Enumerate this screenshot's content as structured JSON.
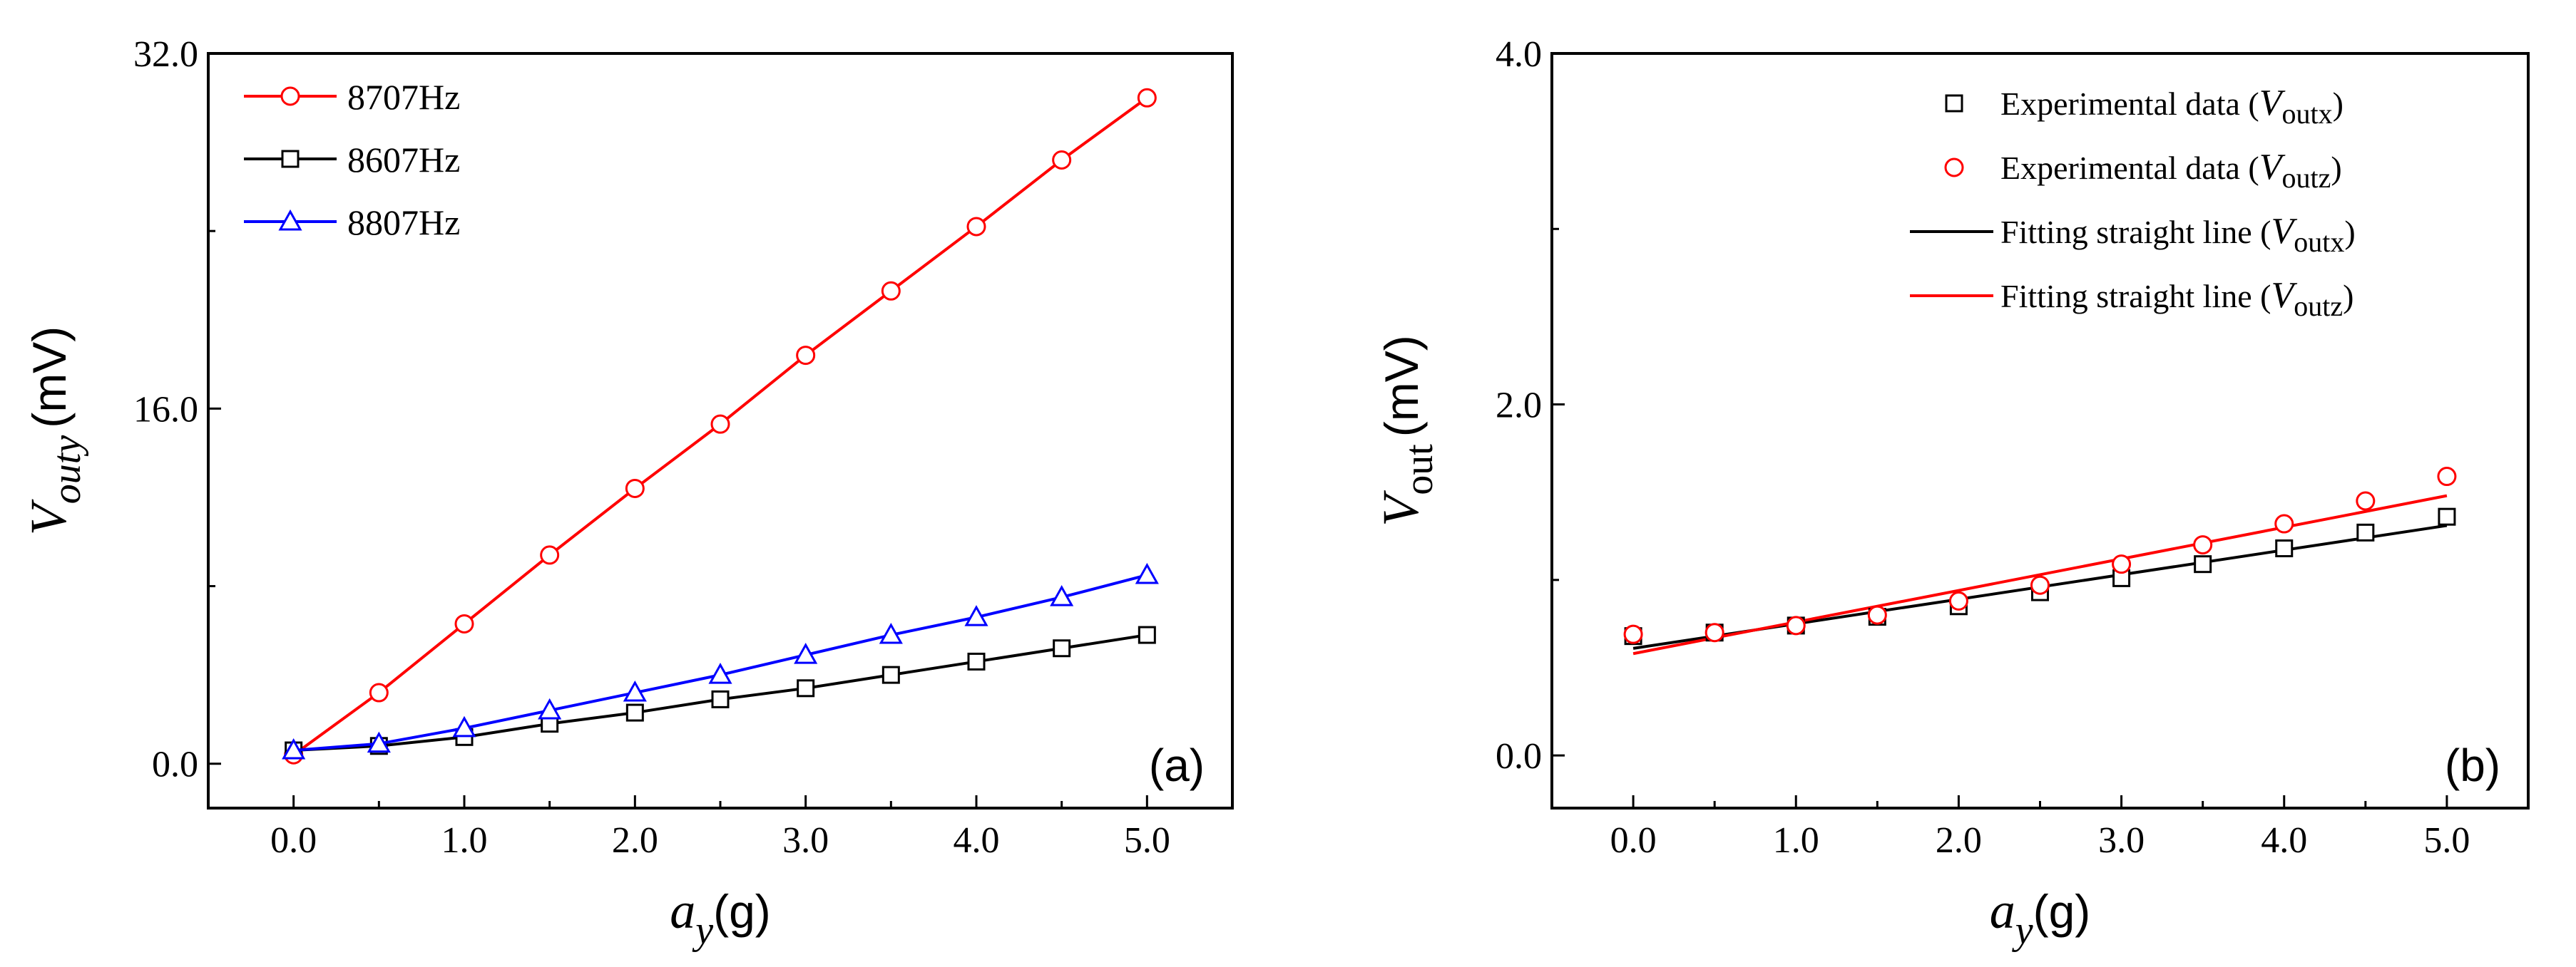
{
  "chart_data": [
    {
      "type": "line",
      "panel_label": "(a)",
      "xlabel": {
        "symbol": "a",
        "subscript": "y",
        "unit": "(g)"
      },
      "ylabel": {
        "symbol": "V",
        "subscript": "outy",
        "unit": "(mV)"
      },
      "xlim": [
        -0.5,
        5.5
      ],
      "ylim": [
        -2.0,
        32.0
      ],
      "xticks": [
        0,
        1,
        2,
        3,
        4,
        5
      ],
      "xtick_labels": [
        "0.0",
        "1.0",
        "2.0",
        "3.0",
        "4.0",
        "5.0"
      ],
      "yticks": [
        0,
        16,
        32
      ],
      "ytick_labels": [
        "0.0",
        "16.0",
        "32.0"
      ],
      "legend_position": "top-left",
      "x": [
        0,
        0.5,
        1,
        1.5,
        2,
        2.5,
        3,
        3.5,
        4,
        4.5,
        5
      ],
      "series": [
        {
          "name": "8707Hz",
          "color": "#ff0000",
          "marker": "circle",
          "values": [
            0.4,
            3.2,
            6.3,
            9.4,
            12.4,
            15.3,
            18.4,
            21.3,
            24.2,
            27.2,
            30.0
          ]
        },
        {
          "name": "8607Hz",
          "color": "#000000",
          "marker": "square",
          "values": [
            0.6,
            0.8,
            1.2,
            1.8,
            2.3,
            2.9,
            3.4,
            4.0,
            4.6,
            5.2,
            5.8
          ]
        },
        {
          "name": "8807Hz",
          "color": "#0000ff",
          "marker": "triangle",
          "values": [
            0.6,
            0.9,
            1.6,
            2.4,
            3.2,
            4.0,
            4.9,
            5.8,
            6.6,
            7.5,
            8.5
          ]
        }
      ]
    },
    {
      "type": "scatter",
      "panel_label": "(b)",
      "xlabel": {
        "symbol": "a",
        "subscript": "y",
        "unit": "(g)"
      },
      "ylabel": {
        "symbol": "V",
        "subscript": "out",
        "unit": "(mV)"
      },
      "xlim": [
        -0.5,
        5.5
      ],
      "ylim": [
        -0.3,
        4.0
      ],
      "xticks": [
        0,
        1,
        2,
        3,
        4,
        5
      ],
      "xtick_labels": [
        "0.0",
        "1.0",
        "2.0",
        "3.0",
        "4.0",
        "5.0"
      ],
      "yticks": [
        0,
        2,
        4
      ],
      "ytick_labels": [
        "0.0",
        "2.0",
        "4.0"
      ],
      "legend_position": "top-right",
      "x": [
        0,
        0.5,
        1,
        1.5,
        2,
        2.5,
        3,
        3.5,
        4,
        4.5,
        5
      ],
      "series": [
        {
          "name": "Experimental data (Voutx)",
          "label_prefix": "Experimental data (",
          "label_var": "V",
          "label_sub": "outx",
          "label_suffix": ")",
          "color": "#000000",
          "marker": "square",
          "values": [
            0.68,
            0.7,
            0.74,
            0.79,
            0.85,
            0.93,
            1.01,
            1.09,
            1.18,
            1.27,
            1.36
          ]
        },
        {
          "name": "Experimental data (Voutz)",
          "label_prefix": "Experimental data (",
          "label_var": "V",
          "label_sub": "outz",
          "label_suffix": ")",
          "color": "#ff0000",
          "marker": "circle",
          "values": [
            0.69,
            0.7,
            0.74,
            0.8,
            0.88,
            0.97,
            1.09,
            1.2,
            1.32,
            1.45,
            1.59
          ]
        }
      ],
      "fits": [
        {
          "name": "Fitting straight line (Voutx)",
          "label_prefix": "Fitting straight line (",
          "label_var": "V",
          "label_sub": "outx",
          "label_suffix": ")",
          "color": "#000000",
          "intercept": 0.61,
          "slope": 0.14
        },
        {
          "name": "Fitting straight line (Voutz)",
          "label_prefix": "Fitting straight line (",
          "label_var": "V",
          "label_sub": "outz",
          "label_suffix": ")",
          "color": "#ff0000",
          "intercept": 0.58,
          "slope": 0.18
        }
      ]
    }
  ]
}
